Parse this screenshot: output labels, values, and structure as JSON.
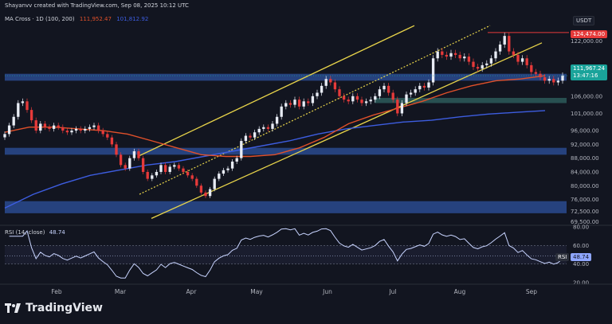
{
  "header": {
    "line1": "Shayanvv created with TradingView.com, Sep 08, 2025 10:12 UTC",
    "indicator_label": "MA Cross · 1D (100, 200)",
    "ma100_value": "111,952.47",
    "ma200_value": "101,812.92",
    "currency_badge": "USDT"
  },
  "price_tags": {
    "high": "124,474.00",
    "current": "111,967.24",
    "countdown": "13:47:16"
  },
  "rsi_panel": {
    "label": "RSI (14, close)",
    "value": "48.74",
    "tag_label": "RSI",
    "tag_value": "48.74",
    "ticks": [
      "80.00",
      "60.00",
      "40.00",
      "20.00"
    ]
  },
  "footer": {
    "brand": "TradingView"
  },
  "colors": {
    "background": "#121520",
    "candle_up": "#e8ecf5",
    "candle_down": "#e63a3a",
    "ma100": "#e0502a",
    "ma200": "#3d5de0",
    "channel": "#e8d44a",
    "zone": "#2a4a8f",
    "support_zone": "#2d5a5a",
    "rsi_line": "#c8d4ff",
    "current_price_tag": "#1aa39a",
    "high_tag": "#e63a3a"
  },
  "chart_data": {
    "type": "candlestick",
    "x_ticks": [
      "Feb",
      "Mar",
      "Apr",
      "May",
      "Jun",
      "Jul",
      "Aug",
      "Sep"
    ],
    "y_ticks": [
      "122,000.00",
      "114,000.00",
      "106,000.00",
      "101,000.00",
      "96,000.00",
      "92,000.00",
      "88,000.00",
      "84,000.00",
      "80,000.00",
      "76,000.00",
      "72,500.00",
      "69,500.00"
    ],
    "series": [
      {
        "name": "Price (approx daily close)",
        "values": [
          95000,
          97500,
          100000,
          104000,
          104500,
          102000,
          99000,
          96000,
          98000,
          97000,
          96500,
          97500,
          97000,
          96000,
          95500,
          96000,
          96500,
          96000,
          96500,
          97000,
          97500,
          96000,
          95000,
          94000,
          92000,
          89000,
          86000,
          85000,
          88000,
          90000,
          88000,
          84000,
          82000,
          83000,
          84000,
          86000,
          84000,
          85500,
          86000,
          85000,
          84000,
          83000,
          82000,
          80000,
          78000,
          77000,
          79000,
          82000,
          83500,
          84500,
          85000,
          87000,
          88000,
          93000,
          94500,
          94000,
          95500,
          96500,
          97000,
          96500,
          98000,
          100000,
          103000,
          104000,
          103500,
          105000,
          103000,
          104500,
          104000,
          106000,
          107000,
          109000,
          111000,
          110000,
          108000,
          106000,
          105000,
          104500,
          106000,
          105000,
          104000,
          104500,
          105000,
          106000,
          108000,
          109000,
          107000,
          105000,
          101000,
          104000,
          106500,
          107000,
          108000,
          109000,
          108500,
          110000,
          117000,
          119000,
          118000,
          117500,
          118500,
          118000,
          117000,
          117500,
          116000,
          114500,
          114000,
          115000,
          115500,
          117000,
          119000,
          121000,
          123500,
          119000,
          118000,
          116000,
          117000,
          115000,
          113000,
          112500,
          111500,
          110500,
          111000,
          110000,
          110500,
          112000
        ]
      },
      {
        "name": "MA 100",
        "values": [
          95500,
          97000,
          97000,
          96500,
          96000,
          95000,
          93000,
          91000,
          89000,
          88500,
          88500,
          89000,
          91000,
          94000,
          98000,
          100500,
          102500,
          104500,
          107000,
          109000,
          110500,
          111000,
          111950
        ]
      },
      {
        "name": "MA 200",
        "values": [
          73500,
          77500,
          80500,
          83000,
          84500,
          86000,
          87000,
          88500,
          90000,
          91500,
          93000,
          95000,
          96500,
          97500,
          98500,
          99000,
          100000,
          100800,
          101300,
          101812
        ]
      }
    ],
    "levels": {
      "ath": 124474,
      "current": 111967.24,
      "support_zone": [
        104000,
        105500
      ],
      "resistance_zone": [
        110500,
        112500
      ],
      "mid_zone": [
        89000,
        91000
      ],
      "low_zone": [
        72000,
        75500
      ]
    },
    "rsi": {
      "name": "RSI (14, close)",
      "current": 48.74,
      "ylim": [
        20,
        80
      ]
    }
  }
}
